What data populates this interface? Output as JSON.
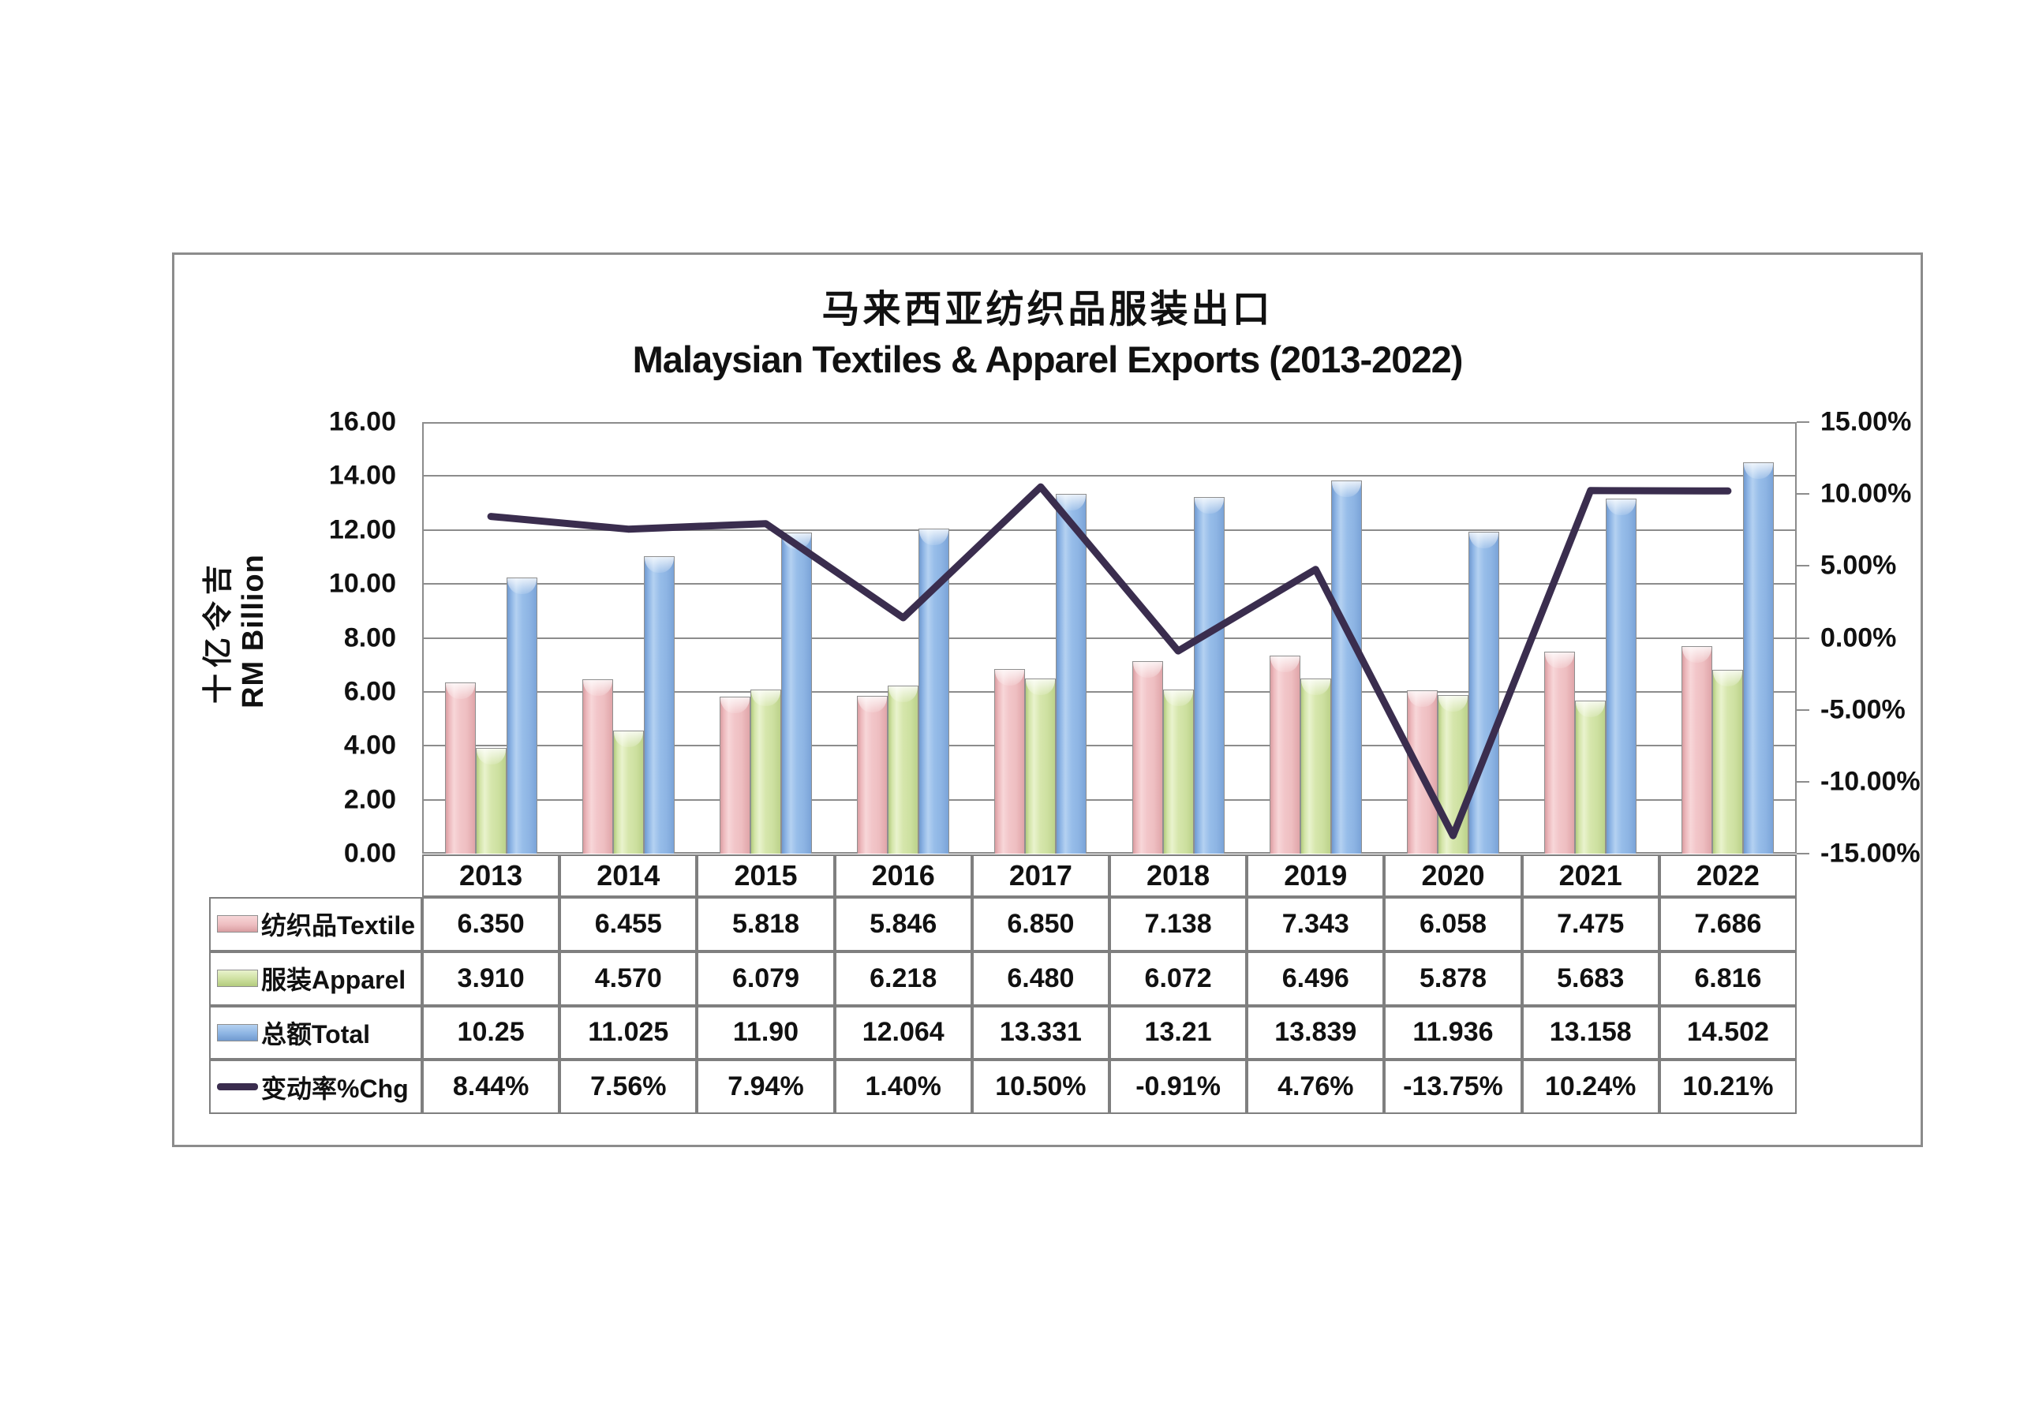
{
  "titles": {
    "zh": "马来西亚纺织品服装出口",
    "en": "Malaysian Textiles & Apparel Exports (2013-2022)"
  },
  "left_axis": {
    "title_zh": "十亿令吉",
    "title_en": "RM Billion",
    "ticks": [
      "16.00",
      "14.00",
      "12.00",
      "10.00",
      "8.00",
      "6.00",
      "4.00",
      "2.00",
      "0.00"
    ]
  },
  "right_axis": {
    "ticks": [
      "15.00%",
      "10.00%",
      "5.00%",
      "0.00%",
      "-5.00%",
      "-10.00%",
      "-15.00%"
    ]
  },
  "colors": {
    "textile": "#eebec1",
    "apparel": "#cde0a0",
    "total": "#8db4e3",
    "pct_line": "#3a2d4e",
    "grid": "#8c8c8c"
  },
  "chart_data": {
    "type": "combo",
    "subtype": "grouped-bar-with-line",
    "categories": [
      "2013",
      "2014",
      "2015",
      "2016",
      "2017",
      "2018",
      "2019",
      "2020",
      "2021",
      "2022"
    ],
    "left_ylim": [
      0,
      16
    ],
    "right_ylim": [
      -15,
      15
    ],
    "grid": true,
    "legend_position": "table-rows-left",
    "series": [
      {
        "name": "纺织品Textile",
        "key": "textile",
        "type": "bar",
        "axis": "left",
        "values": [
          6.35,
          6.455,
          5.818,
          5.846,
          6.85,
          7.138,
          7.343,
          6.058,
          7.475,
          7.686
        ],
        "labels": [
          "6.350",
          "6.455",
          "5.818",
          "5.846",
          "6.850",
          "7.138",
          "7.343",
          "6.058",
          "7.475",
          "7.686"
        ]
      },
      {
        "name": "服装Apparel",
        "key": "apparel",
        "type": "bar",
        "axis": "left",
        "values": [
          3.91,
          4.57,
          6.079,
          6.218,
          6.48,
          6.072,
          6.496,
          5.878,
          5.683,
          6.816
        ],
        "labels": [
          "3.910",
          "4.570",
          "6.079",
          "6.218",
          "6.480",
          "6.072",
          "6.496",
          "5.878",
          "5.683",
          "6.816"
        ]
      },
      {
        "name": "总额Total",
        "key": "total",
        "type": "bar",
        "axis": "left",
        "values": [
          10.25,
          11.025,
          11.9,
          12.064,
          13.331,
          13.21,
          13.839,
          11.936,
          13.158,
          14.502
        ],
        "labels": [
          "10.25",
          "11.025",
          "11.90",
          "12.064",
          "13.331",
          "13.21",
          "13.839",
          "11.936",
          "13.158",
          "14.502"
        ]
      },
      {
        "name": "变动率%Chg",
        "key": "pct",
        "type": "line",
        "axis": "right",
        "values": [
          8.44,
          7.56,
          7.94,
          1.4,
          10.5,
          -0.91,
          4.76,
          -13.75,
          10.24,
          10.21
        ],
        "labels": [
          "8.44%",
          "7.56%",
          "7.94%",
          "1.40%",
          "10.50%",
          "-0.91%",
          "4.76%",
          "-13.75%",
          "10.24%",
          "10.21%"
        ]
      }
    ]
  }
}
